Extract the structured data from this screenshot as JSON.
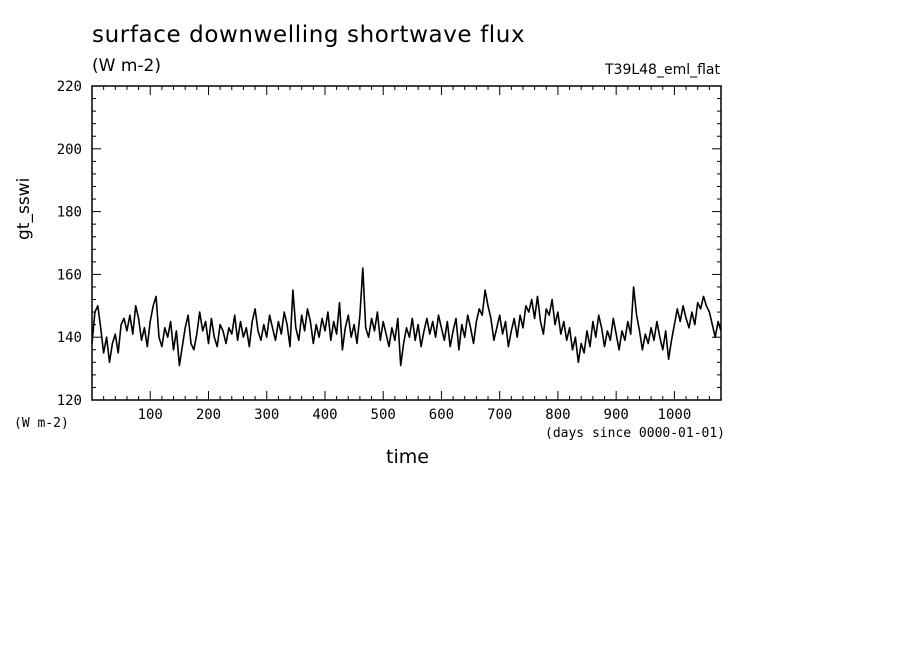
{
  "chart_data": {
    "type": "line",
    "title": "surface downwelling shortwave flux",
    "subtitle": "(W m-2)",
    "run_label": "T39L48_eml_flat",
    "xlabel": "time",
    "xunit": "(days since 0000-01-01)",
    "ylabel": "gt_sswi",
    "yunit": "(W m-2)",
    "xlim": [
      0,
      1080
    ],
    "ylim": [
      120,
      220
    ],
    "xticks": [
      100,
      200,
      300,
      400,
      500,
      600,
      700,
      800,
      900,
      1000
    ],
    "yticks": [
      120,
      140,
      160,
      180,
      200,
      220
    ],
    "grid": false,
    "series": [
      {
        "values": [
          [
            0,
            138
          ],
          [
            5,
            148
          ],
          [
            10,
            150
          ],
          [
            15,
            143
          ],
          [
            20,
            135
          ],
          [
            25,
            140
          ],
          [
            30,
            132
          ],
          [
            35,
            138
          ],
          [
            40,
            141
          ],
          [
            45,
            135
          ],
          [
            50,
            144
          ],
          [
            55,
            146
          ],
          [
            60,
            142
          ],
          [
            65,
            147
          ],
          [
            70,
            141
          ],
          [
            75,
            150
          ],
          [
            80,
            146
          ],
          [
            85,
            139
          ],
          [
            90,
            143
          ],
          [
            95,
            137
          ],
          [
            100,
            145
          ],
          [
            105,
            150
          ],
          [
            110,
            153
          ],
          [
            115,
            140
          ],
          [
            120,
            137
          ],
          [
            125,
            143
          ],
          [
            130,
            140
          ],
          [
            135,
            145
          ],
          [
            140,
            136
          ],
          [
            145,
            142
          ],
          [
            150,
            131
          ],
          [
            155,
            137
          ],
          [
            160,
            143
          ],
          [
            165,
            147
          ],
          [
            170,
            138
          ],
          [
            175,
            136
          ],
          [
            180,
            141
          ],
          [
            185,
            148
          ],
          [
            190,
            142
          ],
          [
            195,
            145
          ],
          [
            200,
            138
          ],
          [
            205,
            146
          ],
          [
            210,
            140
          ],
          [
            215,
            137
          ],
          [
            220,
            144
          ],
          [
            225,
            142
          ],
          [
            230,
            138
          ],
          [
            235,
            143
          ],
          [
            240,
            141
          ],
          [
            245,
            147
          ],
          [
            250,
            139
          ],
          [
            255,
            145
          ],
          [
            260,
            140
          ],
          [
            265,
            143
          ],
          [
            270,
            137
          ],
          [
            275,
            145
          ],
          [
            280,
            149
          ],
          [
            285,
            142
          ],
          [
            290,
            139
          ],
          [
            295,
            144
          ],
          [
            300,
            140
          ],
          [
            305,
            147
          ],
          [
            310,
            143
          ],
          [
            315,
            139
          ],
          [
            320,
            145
          ],
          [
            325,
            141
          ],
          [
            330,
            148
          ],
          [
            335,
            144
          ],
          [
            340,
            137
          ],
          [
            345,
            155
          ],
          [
            350,
            143
          ],
          [
            355,
            139
          ],
          [
            360,
            147
          ],
          [
            365,
            142
          ],
          [
            370,
            149
          ],
          [
            375,
            145
          ],
          [
            380,
            138
          ],
          [
            385,
            144
          ],
          [
            390,
            140
          ],
          [
            395,
            146
          ],
          [
            400,
            142
          ],
          [
            405,
            148
          ],
          [
            410,
            139
          ],
          [
            415,
            145
          ],
          [
            420,
            141
          ],
          [
            425,
            151
          ],
          [
            430,
            136
          ],
          [
            435,
            143
          ],
          [
            440,
            147
          ],
          [
            445,
            140
          ],
          [
            450,
            144
          ],
          [
            455,
            138
          ],
          [
            460,
            147
          ],
          [
            465,
            162
          ],
          [
            470,
            143
          ],
          [
            475,
            140
          ],
          [
            480,
            146
          ],
          [
            485,
            142
          ],
          [
            490,
            148
          ],
          [
            495,
            139
          ],
          [
            500,
            145
          ],
          [
            505,
            141
          ],
          [
            510,
            137
          ],
          [
            515,
            143
          ],
          [
            520,
            139
          ],
          [
            525,
            146
          ],
          [
            530,
            131
          ],
          [
            535,
            138
          ],
          [
            540,
            143
          ],
          [
            545,
            140
          ],
          [
            550,
            146
          ],
          [
            555,
            139
          ],
          [
            560,
            144
          ],
          [
            565,
            137
          ],
          [
            570,
            142
          ],
          [
            575,
            146
          ],
          [
            580,
            141
          ],
          [
            585,
            145
          ],
          [
            590,
            140
          ],
          [
            595,
            147
          ],
          [
            600,
            143
          ],
          [
            605,
            139
          ],
          [
            610,
            145
          ],
          [
            615,
            137
          ],
          [
            620,
            142
          ],
          [
            625,
            146
          ],
          [
            630,
            136
          ],
          [
            635,
            144
          ],
          [
            640,
            140
          ],
          [
            645,
            147
          ],
          [
            650,
            143
          ],
          [
            655,
            138
          ],
          [
            660,
            145
          ],
          [
            665,
            149
          ],
          [
            670,
            147
          ],
          [
            675,
            155
          ],
          [
            680,
            150
          ],
          [
            685,
            146
          ],
          [
            690,
            139
          ],
          [
            695,
            143
          ],
          [
            700,
            147
          ],
          [
            705,
            141
          ],
          [
            710,
            145
          ],
          [
            715,
            137
          ],
          [
            720,
            142
          ],
          [
            725,
            146
          ],
          [
            730,
            140
          ],
          [
            735,
            147
          ],
          [
            740,
            143
          ],
          [
            745,
            150
          ],
          [
            750,
            148
          ],
          [
            755,
            152
          ],
          [
            760,
            146
          ],
          [
            765,
            153
          ],
          [
            770,
            145
          ],
          [
            775,
            141
          ],
          [
            780,
            149
          ],
          [
            785,
            147
          ],
          [
            790,
            152
          ],
          [
            795,
            144
          ],
          [
            800,
            148
          ],
          [
            805,
            141
          ],
          [
            810,
            145
          ],
          [
            815,
            139
          ],
          [
            820,
            143
          ],
          [
            825,
            136
          ],
          [
            830,
            140
          ],
          [
            835,
            132
          ],
          [
            840,
            138
          ],
          [
            845,
            135
          ],
          [
            850,
            142
          ],
          [
            855,
            137
          ],
          [
            860,
            145
          ],
          [
            865,
            140
          ],
          [
            870,
            147
          ],
          [
            875,
            143
          ],
          [
            880,
            137
          ],
          [
            885,
            142
          ],
          [
            890,
            139
          ],
          [
            895,
            146
          ],
          [
            900,
            141
          ],
          [
            905,
            136
          ],
          [
            910,
            142
          ],
          [
            915,
            139
          ],
          [
            920,
            145
          ],
          [
            925,
            141
          ],
          [
            930,
            156
          ],
          [
            935,
            147
          ],
          [
            940,
            142
          ],
          [
            945,
            136
          ],
          [
            950,
            141
          ],
          [
            955,
            138
          ],
          [
            960,
            143
          ],
          [
            965,
            139
          ],
          [
            970,
            145
          ],
          [
            975,
            140
          ],
          [
            980,
            136
          ],
          [
            985,
            142
          ],
          [
            990,
            133
          ],
          [
            995,
            139
          ],
          [
            1000,
            144
          ],
          [
            1005,
            149
          ],
          [
            1010,
            145
          ],
          [
            1015,
            150
          ],
          [
            1020,
            146
          ],
          [
            1025,
            143
          ],
          [
            1030,
            148
          ],
          [
            1035,
            144
          ],
          [
            1040,
            151
          ],
          [
            1045,
            149
          ],
          [
            1050,
            153
          ],
          [
            1055,
            150
          ],
          [
            1060,
            148
          ],
          [
            1065,
            144
          ],
          [
            1070,
            140
          ],
          [
            1075,
            145
          ],
          [
            1080,
            142
          ]
        ],
        "color": "#000000"
      }
    ]
  }
}
